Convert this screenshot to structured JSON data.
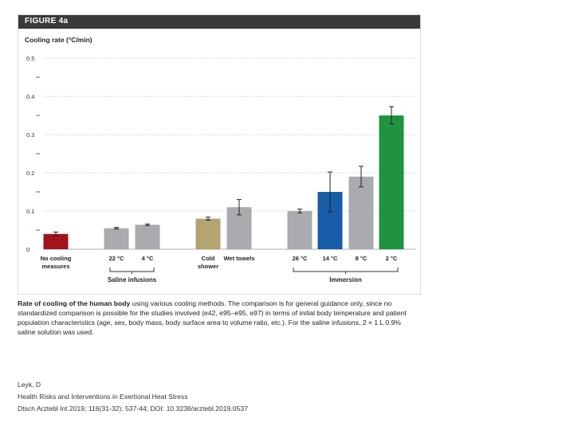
{
  "figure_label": "FIGURE 4a",
  "chart_data": {
    "type": "bar",
    "title": "",
    "ylabel": "Cooling rate (°C/min)",
    "xlabel": "",
    "ylim": [
      0,
      0.5
    ],
    "yticks": [
      0,
      0.1,
      0.2,
      0.3,
      0.4,
      0.5
    ],
    "ytick_labels": [
      "0",
      "0.1",
      "0.2",
      "0.3",
      "0.4",
      "0.5"
    ],
    "grid": true,
    "bars": [
      {
        "label": "No cooling measures",
        "value": 0.04,
        "err_low": 0.035,
        "err_high": 0.045,
        "color": "#a3131c"
      },
      {
        "label": "22 °C",
        "value": 0.055,
        "err_low": 0.053,
        "err_high": 0.057,
        "color": "#a9abae"
      },
      {
        "label": "4 °C",
        "value": 0.064,
        "err_low": 0.062,
        "err_high": 0.066,
        "color": "#a9abae"
      },
      {
        "label": "Cold shower",
        "value": 0.08,
        "err_low": 0.076,
        "err_high": 0.084,
        "color": "#b4a470"
      },
      {
        "label": "Wet towels",
        "value": 0.11,
        "err_low": 0.09,
        "err_high": 0.13,
        "color": "#a9abae"
      },
      {
        "label": "26 °C",
        "value": 0.1,
        "err_low": 0.095,
        "err_high": 0.105,
        "color": "#a9abae"
      },
      {
        "label": "14 °C",
        "value": 0.15,
        "err_low": 0.098,
        "err_high": 0.202,
        "color": "#175da7"
      },
      {
        "label": "8 °C",
        "value": 0.19,
        "err_low": 0.163,
        "err_high": 0.217,
        "color": "#a9abae"
      },
      {
        "label": "2 °C",
        "value": 0.35,
        "err_low": 0.328,
        "err_high": 0.373,
        "color": "#20933f"
      }
    ],
    "groups": [
      {
        "label": "Saline infusions",
        "bars": [
          1,
          2
        ]
      },
      {
        "label": "Immersion",
        "bars": [
          5,
          6,
          7,
          8
        ]
      }
    ]
  },
  "caption": {
    "lead": "Rate of cooling of the human body",
    "text": " using various cooling methods. The comparison is for general guidance only, since no standardized comparison is possible for the studies involved (e42, e95–e95, e97) in terms of initial body temperature and patient population characteristics (age, sex, body mass, body surface area to volume ratio, etc.). For the saline infusions, 2 × 1 L 0.9% saline solution was used."
  },
  "credits": {
    "author": "Leyk, D",
    "article": "Health Risks and Interventions in Exertional Heat Stress",
    "citation": "Dtsch Arztebl Int 2019; 116(31-32): 537-44; DOI: 10.3238/arztebl.2019.0537"
  }
}
